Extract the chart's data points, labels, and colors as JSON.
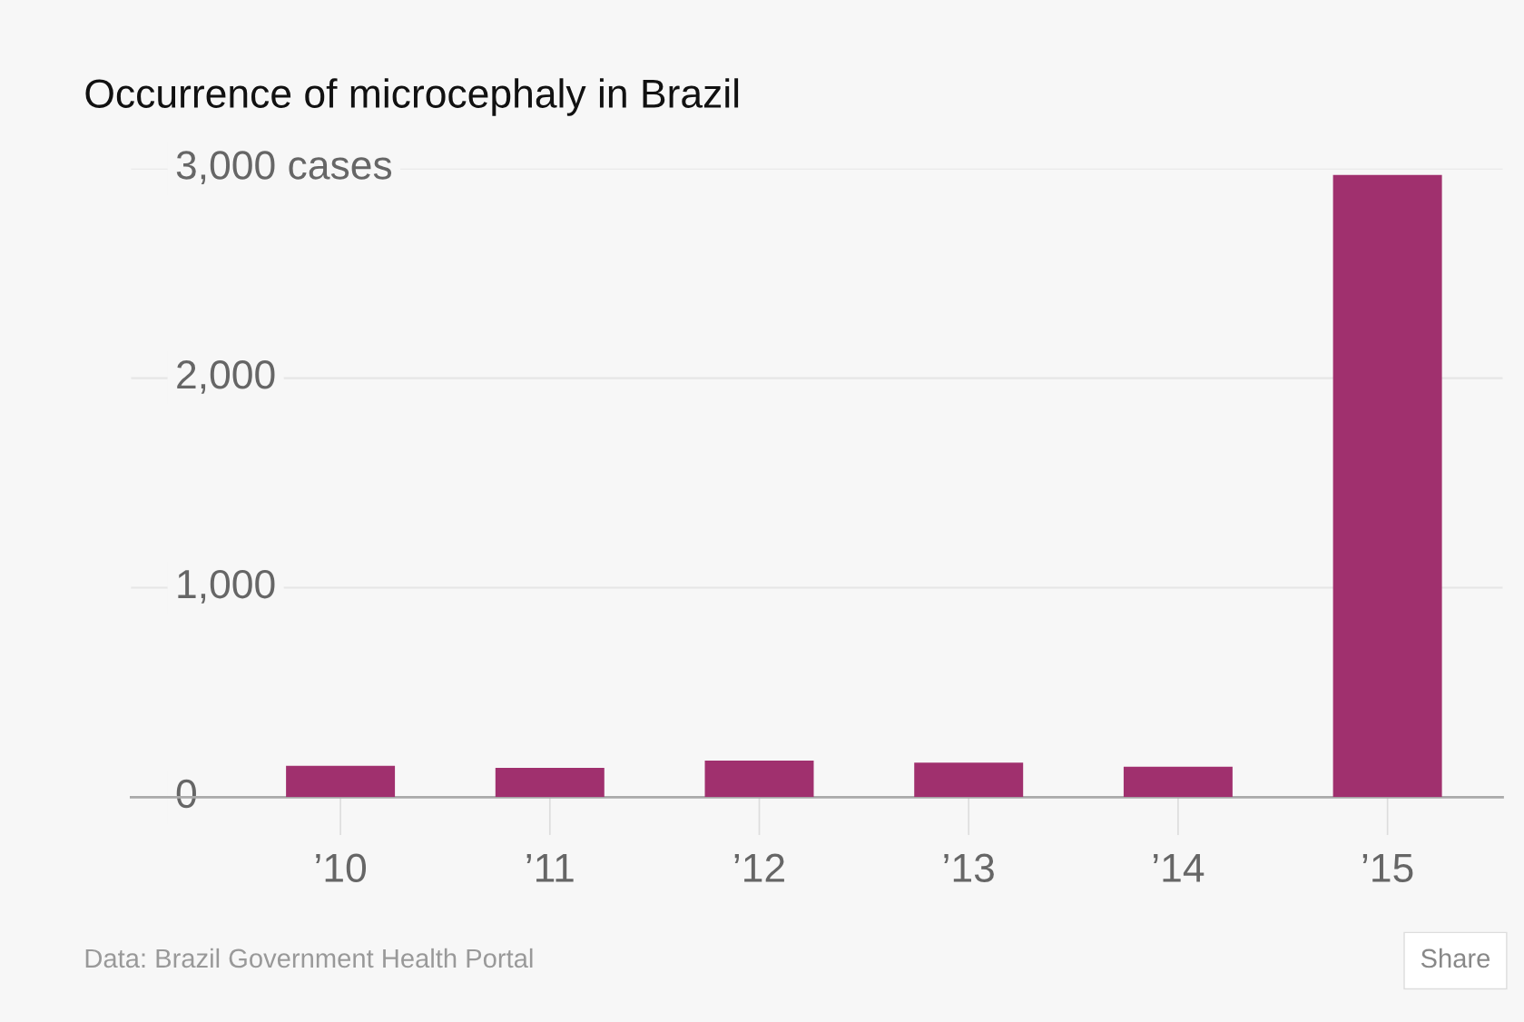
{
  "chart_data": {
    "type": "bar",
    "title": "Occurrence of microcephaly in Brazil",
    "categories": [
      "’10",
      "’11",
      "’12",
      "’13",
      "’14",
      "’15"
    ],
    "values": [
      150,
      140,
      175,
      165,
      145,
      2970
    ],
    "color": "#a0306e",
    "ylim": [
      0,
      3000
    ],
    "yticks": [
      0,
      {
        "value": 1000,
        "label": "1,000"
      },
      {
        "value": 2000,
        "label": "2,000"
      },
      {
        "value": 3000,
        "label": "3,000 cases"
      }
    ],
    "grid": "y",
    "legend": false,
    "annotations": [
      "Data: Brazil Government Health Portal",
      "Share"
    ]
  }
}
